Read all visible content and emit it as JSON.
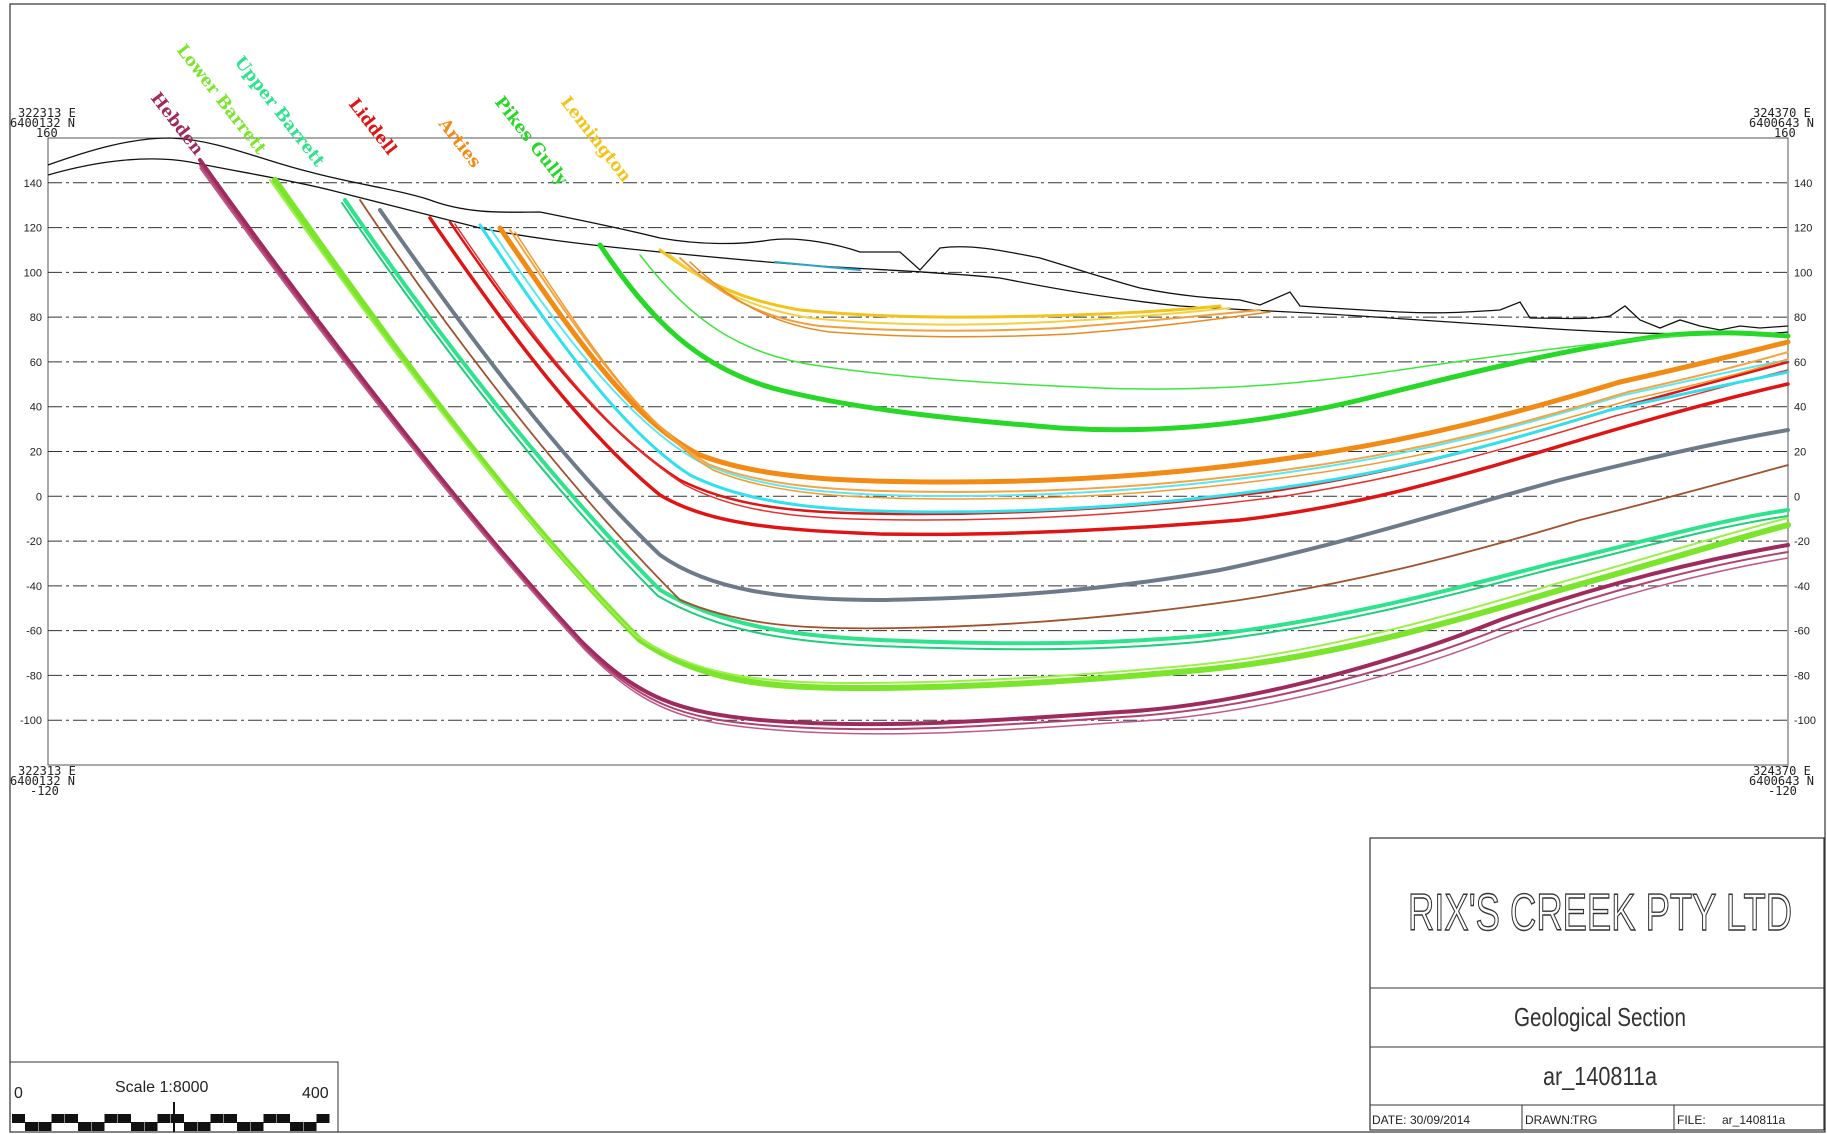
{
  "section": {
    "coords": {
      "top_left": {
        "e": "322313 E",
        "n": "6400132 N",
        "elev": "160"
      },
      "top_right": {
        "e": "324370 E",
        "n": "6400643 N",
        "elev": "160"
      },
      "bottom_left": {
        "e": "322313 E",
        "n": "6400132 N",
        "elev": "-120"
      },
      "bottom_right": {
        "e": "324370 E",
        "n": "6400643 N",
        "elev": "-120"
      }
    },
    "elev_range": [
      -120,
      160
    ],
    "gridlines": [
      140,
      120,
      100,
      80,
      60,
      40,
      20,
      0,
      -20,
      -40,
      -60,
      -80,
      -100
    ],
    "seams": [
      {
        "name": "Hebden",
        "color": "#9e2a5e"
      },
      {
        "name": "Lower Barrett",
        "color": "#7ae52a"
      },
      {
        "name": "Upper Barrett",
        "color": "#2de38c"
      },
      {
        "name": "Liddell",
        "color": "#e01414"
      },
      {
        "name": "Arties",
        "color": "#f28a14"
      },
      {
        "name": "Pikes Gully",
        "color": "#27d827"
      },
      {
        "name": "Lemington",
        "color": "#f2c41a"
      }
    ]
  },
  "title_block": {
    "company": "RIX'S CREEK PTY LTD",
    "subtitle": "Geological Section",
    "file_code": "ar_140811a",
    "date_label": "DATE:",
    "date_value": "30/09/2014",
    "drawn_label": "DRAWN:",
    "drawn_value": "TRG",
    "file_label": "FILE:",
    "file_value": "ar_140811a"
  },
  "scale_bar": {
    "label": "Scale 1:8000",
    "start": "0",
    "end": "400"
  }
}
